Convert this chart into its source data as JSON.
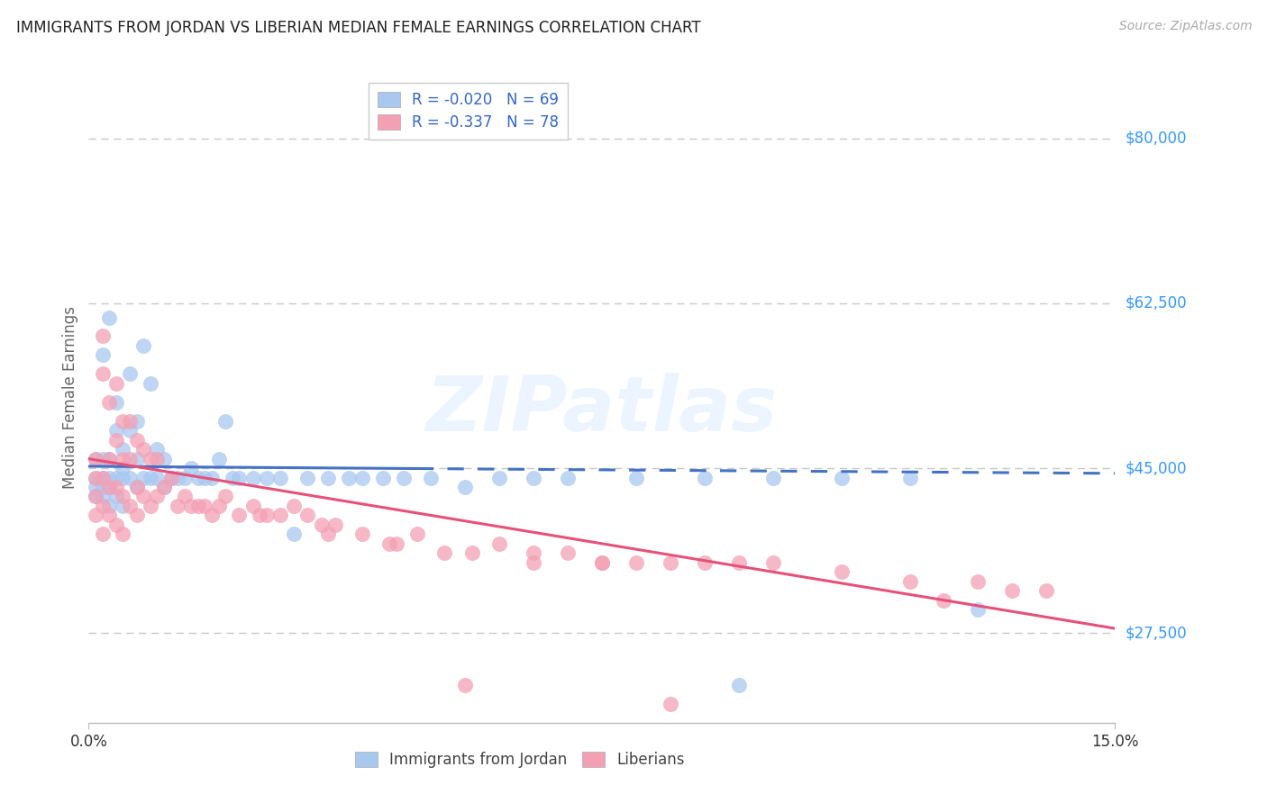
{
  "title": "IMMIGRANTS FROM JORDAN VS LIBERIAN MEDIAN FEMALE EARNINGS CORRELATION CHART",
  "source": "Source: ZipAtlas.com",
  "ylabel": "Median Female Earnings",
  "yticks": [
    27500,
    45000,
    62500,
    80000
  ],
  "ytick_labels": [
    "$27,500",
    "$45,000",
    "$62,500",
    "$80,000"
  ],
  "xlim": [
    0.0,
    0.15
  ],
  "ylim": [
    18000,
    87000
  ],
  "watermark": "ZIPatlas",
  "jordan_color": "#a8c8f0",
  "liberian_color": "#f4a0b4",
  "jordan_line_color": "#4472c4",
  "liberian_line_color": "#e8507a",
  "background_color": "#ffffff",
  "grid_color": "#c8c8c8",
  "title_color": "#222222",
  "axis_label_color": "#666666",
  "ytick_color": "#3399ff",
  "jordan_R": -0.02,
  "jordan_N": 69,
  "liberian_R": -0.337,
  "liberian_N": 78,
  "jordan_series_label": "Immigrants from Jordan",
  "liberian_series_label": "Liberians",
  "jordan_x": [
    0.001,
    0.001,
    0.001,
    0.001,
    0.002,
    0.002,
    0.002,
    0.002,
    0.002,
    0.003,
    0.003,
    0.003,
    0.003,
    0.003,
    0.004,
    0.004,
    0.004,
    0.004,
    0.005,
    0.005,
    0.005,
    0.005,
    0.006,
    0.006,
    0.006,
    0.007,
    0.007,
    0.007,
    0.008,
    0.008,
    0.009,
    0.009,
    0.01,
    0.01,
    0.011,
    0.011,
    0.012,
    0.013,
    0.014,
    0.015,
    0.016,
    0.017,
    0.018,
    0.019,
    0.02,
    0.021,
    0.022,
    0.024,
    0.026,
    0.028,
    0.03,
    0.032,
    0.035,
    0.038,
    0.04,
    0.043,
    0.046,
    0.05,
    0.055,
    0.06,
    0.065,
    0.07,
    0.08,
    0.09,
    0.095,
    0.1,
    0.11,
    0.12,
    0.13
  ],
  "jordan_y": [
    44000,
    46000,
    43000,
    42000,
    57000,
    44000,
    46000,
    43000,
    42000,
    61000,
    44000,
    46000,
    43000,
    41000,
    52000,
    49000,
    44000,
    42000,
    47000,
    45000,
    44000,
    41000,
    55000,
    49000,
    44000,
    50000,
    46000,
    43000,
    58000,
    44000,
    54000,
    44000,
    47000,
    44000,
    46000,
    43000,
    44000,
    44000,
    44000,
    45000,
    44000,
    44000,
    44000,
    46000,
    50000,
    44000,
    44000,
    44000,
    44000,
    44000,
    38000,
    44000,
    44000,
    44000,
    44000,
    44000,
    44000,
    44000,
    43000,
    44000,
    44000,
    44000,
    44000,
    44000,
    22000,
    44000,
    44000,
    44000,
    30000
  ],
  "liberian_x": [
    0.001,
    0.001,
    0.001,
    0.001,
    0.002,
    0.002,
    0.002,
    0.002,
    0.002,
    0.003,
    0.003,
    0.003,
    0.003,
    0.004,
    0.004,
    0.004,
    0.004,
    0.005,
    0.005,
    0.005,
    0.005,
    0.006,
    0.006,
    0.006,
    0.007,
    0.007,
    0.007,
    0.008,
    0.008,
    0.009,
    0.009,
    0.01,
    0.01,
    0.011,
    0.012,
    0.013,
    0.014,
    0.015,
    0.016,
    0.017,
    0.018,
    0.019,
    0.02,
    0.022,
    0.024,
    0.026,
    0.028,
    0.03,
    0.032,
    0.034,
    0.036,
    0.04,
    0.044,
    0.048,
    0.052,
    0.056,
    0.06,
    0.065,
    0.07,
    0.075,
    0.08,
    0.085,
    0.09,
    0.095,
    0.1,
    0.11,
    0.12,
    0.13,
    0.135,
    0.14,
    0.025,
    0.035,
    0.045,
    0.055,
    0.065,
    0.075,
    0.085,
    0.125
  ],
  "liberian_y": [
    46000,
    44000,
    42000,
    40000,
    59000,
    55000,
    44000,
    41000,
    38000,
    52000,
    46000,
    43000,
    40000,
    54000,
    48000,
    43000,
    39000,
    50000,
    46000,
    42000,
    38000,
    50000,
    46000,
    41000,
    48000,
    43000,
    40000,
    47000,
    42000,
    46000,
    41000,
    46000,
    42000,
    43000,
    44000,
    41000,
    42000,
    41000,
    41000,
    41000,
    40000,
    41000,
    42000,
    40000,
    41000,
    40000,
    40000,
    41000,
    40000,
    39000,
    39000,
    38000,
    37000,
    38000,
    36000,
    36000,
    37000,
    36000,
    36000,
    35000,
    35000,
    35000,
    35000,
    35000,
    35000,
    34000,
    33000,
    33000,
    32000,
    32000,
    40000,
    38000,
    37000,
    22000,
    35000,
    35000,
    20000,
    31000
  ]
}
